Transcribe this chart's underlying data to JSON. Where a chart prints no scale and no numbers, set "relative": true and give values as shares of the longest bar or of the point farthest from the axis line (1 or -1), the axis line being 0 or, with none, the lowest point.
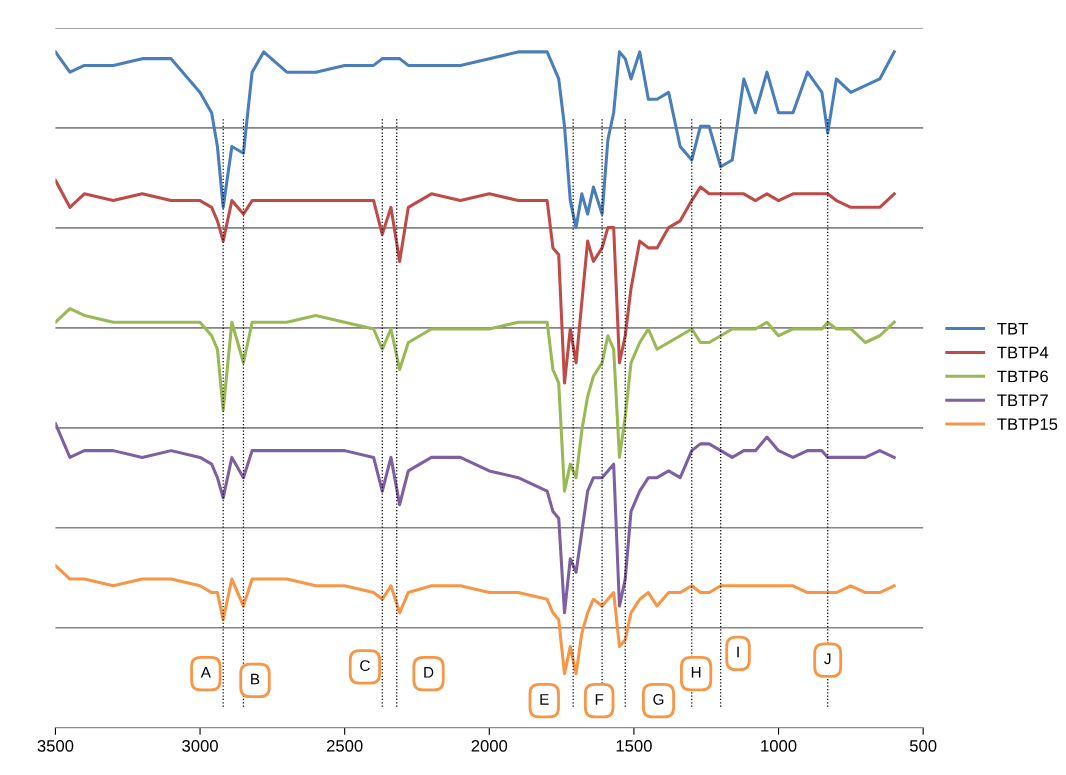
{
  "chart_data": {
    "type": "line",
    "relative": true,
    "x": [
      3500,
      3450,
      3400,
      3300,
      3200,
      3100,
      3000,
      2960,
      2940,
      2920,
      2890,
      2850,
      2820,
      2780,
      2700,
      2600,
      2500,
      2400,
      2370,
      2340,
      2310,
      2280,
      2200,
      2100,
      2000,
      1900,
      1800,
      1780,
      1760,
      1740,
      1720,
      1700,
      1680,
      1660,
      1640,
      1610,
      1590,
      1570,
      1550,
      1530,
      1510,
      1480,
      1450,
      1420,
      1380,
      1340,
      1300,
      1270,
      1240,
      1200,
      1160,
      1120,
      1080,
      1040,
      1000,
      950,
      900,
      850,
      830,
      800,
      750,
      700,
      650,
      600
    ],
    "xlim": [
      3500,
      500
    ],
    "xticks": [
      3500,
      3000,
      2500,
      2000,
      1500,
      1000,
      500
    ],
    "grid": "y",
    "legend": "right",
    "marker": "none",
    "line_style": "solid",
    "series": [
      {
        "name": "TBT",
        "color": "#4a7ebb",
        "values": [
          1.0,
          0.97,
          0.98,
          0.98,
          0.99,
          0.99,
          0.94,
          0.91,
          0.86,
          0.77,
          0.86,
          0.85,
          0.97,
          1.0,
          0.97,
          0.97,
          0.98,
          0.98,
          0.99,
          0.99,
          0.99,
          0.98,
          0.98,
          0.98,
          0.99,
          1.0,
          1.0,
          0.98,
          0.96,
          0.89,
          0.78,
          0.74,
          0.79,
          0.76,
          0.8,
          0.76,
          0.87,
          0.91,
          1.0,
          0.99,
          0.96,
          1.0,
          0.93,
          0.93,
          0.94,
          0.86,
          0.84,
          0.89,
          0.89,
          0.83,
          0.84,
          0.96,
          0.91,
          0.97,
          0.91,
          0.91,
          0.97,
          0.94,
          0.88,
          0.96,
          0.94,
          0.95,
          0.96,
          1.0
        ]
      },
      {
        "name": "TBTP4",
        "color": "#be4b48",
        "values": [
          0.81,
          0.77,
          0.79,
          0.78,
          0.79,
          0.78,
          0.78,
          0.77,
          0.75,
          0.72,
          0.78,
          0.76,
          0.78,
          0.78,
          0.78,
          0.78,
          0.78,
          0.78,
          0.73,
          0.77,
          0.69,
          0.77,
          0.79,
          0.78,
          0.79,
          0.78,
          0.78,
          0.71,
          0.7,
          0.51,
          0.59,
          0.54,
          0.63,
          0.72,
          0.69,
          0.71,
          0.74,
          0.74,
          0.54,
          0.58,
          0.65,
          0.72,
          0.71,
          0.71,
          0.74,
          0.75,
          0.78,
          0.8,
          0.79,
          0.79,
          0.79,
          0.79,
          0.78,
          0.79,
          0.78,
          0.79,
          0.79,
          0.79,
          0.79,
          0.78,
          0.77,
          0.77,
          0.77,
          0.79
        ]
      },
      {
        "name": "TBTP6",
        "color": "#98b954",
        "values": [
          0.6,
          0.62,
          0.61,
          0.6,
          0.6,
          0.6,
          0.6,
          0.58,
          0.56,
          0.47,
          0.6,
          0.54,
          0.6,
          0.6,
          0.6,
          0.61,
          0.6,
          0.59,
          0.56,
          0.59,
          0.53,
          0.57,
          0.59,
          0.59,
          0.59,
          0.6,
          0.6,
          0.53,
          0.51,
          0.35,
          0.39,
          0.37,
          0.44,
          0.49,
          0.52,
          0.54,
          0.58,
          0.56,
          0.4,
          0.46,
          0.54,
          0.57,
          0.59,
          0.56,
          0.57,
          0.58,
          0.59,
          0.57,
          0.57,
          0.58,
          0.59,
          0.59,
          0.59,
          0.6,
          0.58,
          0.59,
          0.59,
          0.59,
          0.6,
          0.59,
          0.59,
          0.57,
          0.58,
          0.6
        ]
      },
      {
        "name": "TBTP7",
        "color": "#7d60a0",
        "values": [
          0.45,
          0.4,
          0.41,
          0.41,
          0.4,
          0.41,
          0.4,
          0.39,
          0.37,
          0.34,
          0.4,
          0.37,
          0.41,
          0.41,
          0.41,
          0.41,
          0.41,
          0.4,
          0.35,
          0.4,
          0.33,
          0.38,
          0.4,
          0.4,
          0.38,
          0.37,
          0.35,
          0.32,
          0.31,
          0.17,
          0.25,
          0.23,
          0.29,
          0.35,
          0.37,
          0.37,
          0.38,
          0.39,
          0.18,
          0.22,
          0.32,
          0.35,
          0.37,
          0.37,
          0.38,
          0.37,
          0.41,
          0.42,
          0.42,
          0.41,
          0.4,
          0.41,
          0.41,
          0.43,
          0.41,
          0.4,
          0.41,
          0.41,
          0.4,
          0.4,
          0.4,
          0.4,
          0.41,
          0.4
        ]
      },
      {
        "name": "TBTP15",
        "color": "#f79646",
        "values": [
          0.24,
          0.22,
          0.22,
          0.21,
          0.22,
          0.22,
          0.21,
          0.2,
          0.2,
          0.16,
          0.22,
          0.18,
          0.22,
          0.22,
          0.22,
          0.21,
          0.21,
          0.2,
          0.19,
          0.21,
          0.17,
          0.2,
          0.21,
          0.21,
          0.2,
          0.2,
          0.19,
          0.17,
          0.16,
          0.08,
          0.12,
          0.08,
          0.14,
          0.17,
          0.19,
          0.18,
          0.19,
          0.2,
          0.12,
          0.13,
          0.17,
          0.19,
          0.2,
          0.18,
          0.2,
          0.2,
          0.21,
          0.2,
          0.2,
          0.21,
          0.21,
          0.21,
          0.21,
          0.21,
          0.21,
          0.21,
          0.2,
          0.2,
          0.2,
          0.2,
          0.21,
          0.2,
          0.2,
          0.21
        ]
      }
    ],
    "ref_lines": [
      {
        "axis": "x",
        "value": 2920,
        "line_style": "dotted",
        "color": "#000000"
      },
      {
        "axis": "x",
        "value": 2850,
        "line_style": "dotted",
        "color": "#000000"
      },
      {
        "axis": "x",
        "value": 2370,
        "line_style": "dotted",
        "color": "#000000"
      },
      {
        "axis": "x",
        "value": 2320,
        "line_style": "dotted",
        "color": "#000000"
      },
      {
        "axis": "x",
        "value": 1710,
        "line_style": "dotted",
        "color": "#000000"
      },
      {
        "axis": "x",
        "value": 1610,
        "line_style": "dotted",
        "color": "#000000"
      },
      {
        "axis": "x",
        "value": 1530,
        "line_style": "dotted",
        "color": "#000000"
      },
      {
        "axis": "x",
        "value": 1300,
        "line_style": "dotted",
        "color": "#000000"
      },
      {
        "axis": "x",
        "value": 1200,
        "line_style": "dotted",
        "color": "#000000"
      },
      {
        "axis": "x",
        "value": 830,
        "line_style": "dotted",
        "color": "#000000"
      }
    ],
    "annotations": [
      {
        "text": "A",
        "x": 2980,
        "y": 0.08
      },
      {
        "text": "B",
        "x": 2810,
        "y": 0.07
      },
      {
        "text": "C",
        "x": 2430,
        "y": 0.09
      },
      {
        "text": "D",
        "x": 2210,
        "y": 0.08
      },
      {
        "text": "E",
        "x": 1810,
        "y": 0.04
      },
      {
        "text": "F",
        "x": 1620,
        "y": 0.04
      },
      {
        "text": "G",
        "x": 1415,
        "y": 0.04
      },
      {
        "text": "H",
        "x": 1285,
        "y": 0.08
      },
      {
        "text": "I",
        "x": 1140,
        "y": 0.11
      },
      {
        "text": "J",
        "x": 830,
        "y": 0.1
      }
    ]
  }
}
